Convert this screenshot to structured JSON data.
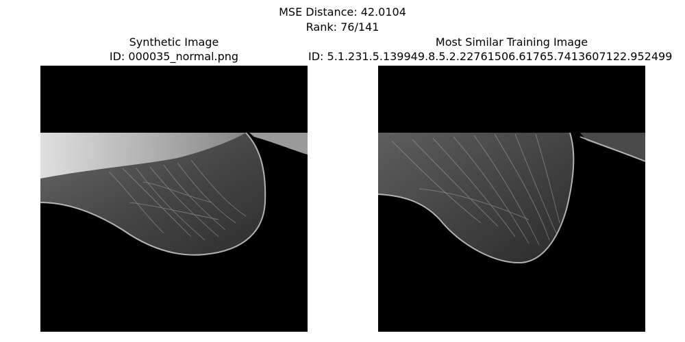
{
  "figure": {
    "suptitle_line1": "MSE Distance: 42.0104",
    "suptitle_line2": "Rank: 76/141"
  },
  "left_panel": {
    "title_line1": "Synthetic Image",
    "title_line2": "ID: 000035_normal.png"
  },
  "right_panel": {
    "title_line1": "Most Similar Training Image",
    "title_line2": "ID: 5.1.231.5.139949.8.5.2.22761506.61765.7413607122.952499"
  },
  "colors": {
    "background": "#000000",
    "tissue_dark": "#3a3a3a",
    "tissue_mid": "#5a5a5a",
    "tissue_light": "#c8c8c8",
    "edge": "#d8d8d8"
  }
}
